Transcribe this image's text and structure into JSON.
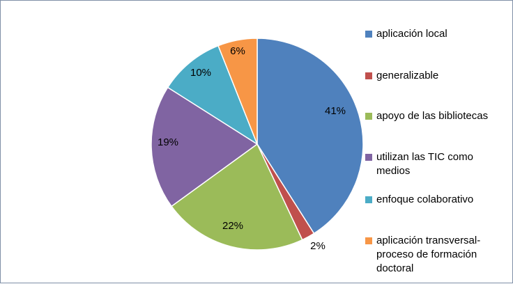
{
  "chart_data": {
    "type": "pie",
    "title": "",
    "legend_position": "right",
    "categories": [
      "aplicación local",
      "generalizable",
      "apoyo de las bibliotecas",
      "utilizan las TIC como medios",
      "enfoque colaborativo",
      "aplicación transversal-proceso de formación doctoral"
    ],
    "legend_labels": [
      [
        "aplicación local"
      ],
      [
        "generalizable"
      ],
      [
        "apoyo de las bibliotecas"
      ],
      [
        "utilizan las TIC como",
        "medios"
      ],
      [
        "enfoque colaborativo"
      ],
      [
        "aplicación transversal-",
        "proceso de formación",
        "doctoral"
      ]
    ],
    "values": [
      41,
      2,
      22,
      19,
      10,
      6
    ],
    "data_labels": [
      "41%",
      "2%",
      "22%",
      "19%",
      "10%",
      "6%"
    ],
    "colors": [
      "#4f81bd",
      "#c0504d",
      "#9bbb59",
      "#8064a2",
      "#4bacc6",
      "#f79646"
    ]
  }
}
